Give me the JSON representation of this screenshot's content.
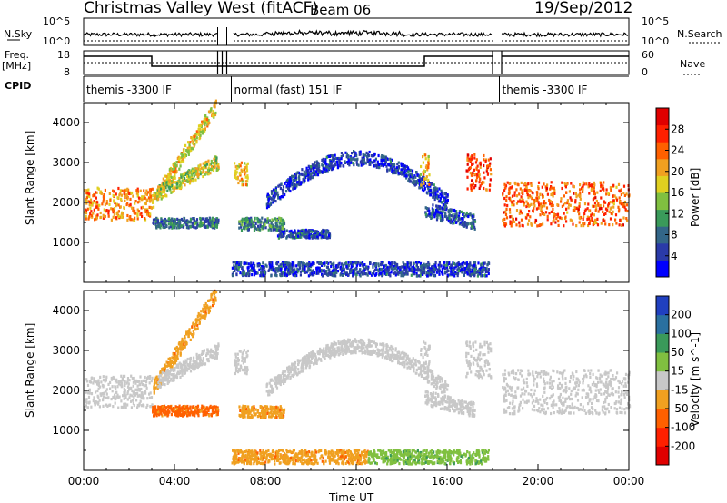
{
  "header": {
    "station": "Christmas Valley West (fitACF)",
    "beam": "Beam 06",
    "date": "19/Sep/2012"
  },
  "strip_labels": {
    "nsky": "N.Sky",
    "nsearch": "N.Search",
    "freq": "Freq.",
    "freq_unit": "[MHz]",
    "nave": "Nave",
    "cpid": "CPID",
    "nsky_ticks": [
      "10^5",
      "10^0"
    ],
    "nsearch_ticks": [
      "10^5",
      "10^0"
    ],
    "freq_ticks": [
      "18",
      "8"
    ],
    "nave_ticks": [
      "60",
      "0"
    ]
  },
  "cpid_segments": [
    {
      "label": "themis -3300 IF",
      "start_hour": 0.0,
      "end_hour": 6.0
    },
    {
      "label": "normal (fast) 151 IF",
      "start_hour": 6.5,
      "end_hour": 18.0
    },
    {
      "label": "themis -3300 IF",
      "start_hour": 18.3,
      "end_hour": 24.0
    }
  ],
  "chart_data": [
    {
      "type": "heatmap",
      "xlabel": "",
      "ylabel": "Slant Range [km]",
      "xlim": [
        0,
        24
      ],
      "ylim": [
        0,
        4500
      ],
      "y_ticks": [
        "1000",
        "2000",
        "3000",
        "4000"
      ],
      "colorbar": {
        "label": "Power [dB]",
        "ticks": [
          "4",
          "8",
          "12",
          "16",
          "20",
          "24",
          "28"
        ],
        "colors": [
          "#0000ff",
          "#2a3aa8",
          "#336688",
          "#3a9a5a",
          "#80c040",
          "#e0d020",
          "#f0a020",
          "#ff6000",
          "#ff2000",
          "#e00000"
        ]
      },
      "features": [
        {
          "kind": "band",
          "t0": 0.0,
          "t1": 3.0,
          "r0": 1550,
          "r1": 2350,
          "level": 22
        },
        {
          "kind": "arc",
          "t0": 3.0,
          "t1": 5.8,
          "r_start": 2000,
          "r_end": 4400,
          "level": 18
        },
        {
          "kind": "arc",
          "t0": 3.2,
          "t1": 5.9,
          "r_start": 2200,
          "r_end": 3000,
          "level": 16
        },
        {
          "kind": "band",
          "t0": 3.0,
          "t1": 5.9,
          "r0": 1350,
          "r1": 1600,
          "level": 8
        },
        {
          "kind": "band",
          "t0": 6.6,
          "t1": 7.2,
          "r0": 2400,
          "r1": 3000,
          "level": 20
        },
        {
          "kind": "band",
          "t0": 6.8,
          "t1": 8.8,
          "r0": 1300,
          "r1": 1600,
          "level": 10
        },
        {
          "kind": "band",
          "t0": 8.5,
          "t1": 10.8,
          "r0": 1100,
          "r1": 1300,
          "level": 6
        },
        {
          "kind": "arc",
          "t0": 8.0,
          "t1": 16.0,
          "r_start": 2000,
          "r_end": 2000,
          "peak": 3100,
          "level": 5
        },
        {
          "kind": "band",
          "t0": 6.5,
          "t1": 17.8,
          "r0": 150,
          "r1": 500,
          "level": 5
        },
        {
          "kind": "band",
          "t0": 14.8,
          "t1": 15.2,
          "r0": 2400,
          "r1": 3200,
          "level": 20
        },
        {
          "kind": "arc",
          "t0": 15.0,
          "t1": 17.2,
          "r_start": 1800,
          "r_end": 1500,
          "level": 6
        },
        {
          "kind": "band",
          "t0": 16.8,
          "t1": 17.9,
          "r0": 2300,
          "r1": 3200,
          "level": 26
        },
        {
          "kind": "band",
          "t0": 18.4,
          "t1": 24.0,
          "r0": 1400,
          "r1": 2500,
          "level": 24
        }
      ]
    },
    {
      "type": "heatmap",
      "xlabel": "Time UT",
      "ylabel": "Slant Range [km]",
      "xlim": [
        0,
        24
      ],
      "ylim": [
        0,
        4500
      ],
      "x_ticks": [
        "00:00",
        "04:00",
        "08:00",
        "12:00",
        "16:00",
        "20:00",
        "00:00"
      ],
      "y_ticks": [
        "1000",
        "2000",
        "3000",
        "4000"
      ],
      "colorbar": {
        "label": "Velocity [m s^-1]",
        "ticks": [
          "200",
          "100",
          "50",
          "15",
          "-15",
          "-50",
          "-100",
          "-200"
        ],
        "colors": [
          "#2040c0",
          "#2a70a0",
          "#3a9a5a",
          "#80c040",
          "#c8c8c8",
          "#f0a020",
          "#ff6000",
          "#ff2000",
          "#e00000"
        ]
      },
      "features": [
        {
          "kind": "band",
          "t0": 0.0,
          "t1": 3.0,
          "r0": 1550,
          "r1": 2350,
          "level": 0
        },
        {
          "kind": "arc",
          "t0": 3.0,
          "t1": 5.8,
          "r_start": 2000,
          "r_end": 4400,
          "level": -40
        },
        {
          "kind": "arc",
          "t0": 3.2,
          "t1": 5.9,
          "r_start": 2200,
          "r_end": 3000,
          "level": 0
        },
        {
          "kind": "band",
          "t0": 3.0,
          "t1": 5.9,
          "r0": 1350,
          "r1": 1600,
          "level": -60
        },
        {
          "kind": "band",
          "t0": 6.6,
          "t1": 7.2,
          "r0": 2400,
          "r1": 3000,
          "level": 0
        },
        {
          "kind": "band",
          "t0": 6.8,
          "t1": 8.8,
          "r0": 1300,
          "r1": 1600,
          "level": -40
        },
        {
          "kind": "arc",
          "t0": 8.0,
          "t1": 16.0,
          "r_start": 2000,
          "r_end": 2000,
          "peak": 3100,
          "level": 0
        },
        {
          "kind": "band",
          "t0": 6.5,
          "t1": 12.5,
          "r0": 150,
          "r1": 500,
          "level": -40
        },
        {
          "kind": "band",
          "t0": 12.5,
          "t1": 17.8,
          "r0": 150,
          "r1": 500,
          "level": 40
        },
        {
          "kind": "band",
          "t0": 14.8,
          "t1": 15.2,
          "r0": 2400,
          "r1": 3200,
          "level": 0
        },
        {
          "kind": "arc",
          "t0": 15.0,
          "t1": 17.2,
          "r_start": 1800,
          "r_end": 1500,
          "level": 0
        },
        {
          "kind": "band",
          "t0": 16.8,
          "t1": 17.9,
          "r0": 2300,
          "r1": 3200,
          "level": 0
        },
        {
          "kind": "band",
          "t0": 18.4,
          "t1": 24.0,
          "r0": 1400,
          "r1": 2500,
          "level": 0
        }
      ]
    }
  ]
}
